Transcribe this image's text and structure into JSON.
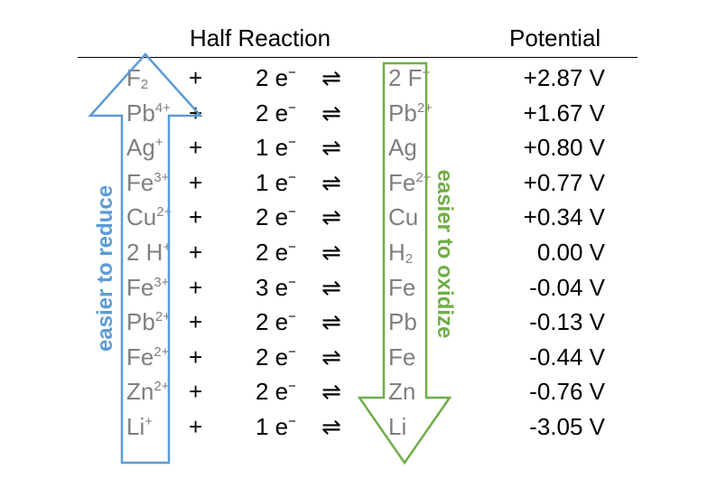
{
  "header": {
    "half_reaction": "Half Reaction",
    "potential": "Potential"
  },
  "labels": {
    "easier_to_reduce": "easier to reduce",
    "easier_to_oxidize": "easier to oxidize"
  },
  "colors": {
    "reduce_arrow": "#5b9bd5",
    "oxidize_arrow": "#70ad47",
    "species_text": "#7f7f7f"
  },
  "rows": [
    {
      "ox": "F",
      "ox_sub": "2",
      "ox_sup": "",
      "plus": "+",
      "electrons": "2 e",
      "e_sup": "−",
      "arrow": "⇌",
      "red": "2 F",
      "red_sub": "",
      "red_sup": "−",
      "potential": "+2.87 V"
    },
    {
      "ox": "Pb",
      "ox_sub": "",
      "ox_sup": "4+",
      "plus": "+",
      "electrons": "2 e",
      "e_sup": "−",
      "arrow": "⇌",
      "red": "Pb",
      "red_sub": "",
      "red_sup": "2+",
      "potential": "+1.67 V"
    },
    {
      "ox": "Ag",
      "ox_sub": "",
      "ox_sup": "+",
      "plus": "+",
      "electrons": "1 e",
      "e_sup": "−",
      "arrow": "⇌",
      "red": "Ag",
      "red_sub": "",
      "red_sup": "",
      "potential": "+0.80 V"
    },
    {
      "ox": "Fe",
      "ox_sub": "",
      "ox_sup": "3+",
      "plus": "+",
      "electrons": "1 e",
      "e_sup": "−",
      "arrow": "⇌",
      "red": "Fe",
      "red_sub": "",
      "red_sup": "2+",
      "potential": "+0.77 V"
    },
    {
      "ox": "Cu",
      "ox_sub": "",
      "ox_sup": "2+",
      "plus": "+",
      "electrons": "2 e",
      "e_sup": "−",
      "arrow": "⇌",
      "red": "Cu",
      "red_sub": "",
      "red_sup": "",
      "potential": "+0.34 V"
    },
    {
      "ox": "2 H",
      "ox_sub": "",
      "ox_sup": "+",
      "plus": "+",
      "electrons": "2 e",
      "e_sup": "−",
      "arrow": "⇌",
      "red": "H",
      "red_sub": "2",
      "red_sup": "",
      "potential": "0.00 V"
    },
    {
      "ox": "Fe",
      "ox_sub": "",
      "ox_sup": "3+",
      "plus": "+",
      "electrons": "3 e",
      "e_sup": "−",
      "arrow": "⇌",
      "red": "Fe",
      "red_sub": "",
      "red_sup": "",
      "potential": "-0.04 V"
    },
    {
      "ox": "Pb",
      "ox_sub": "",
      "ox_sup": "2+",
      "plus": "+",
      "electrons": "2 e",
      "e_sup": "−",
      "arrow": "⇌",
      "red": "Pb",
      "red_sub": "",
      "red_sup": "",
      "potential": "-0.13 V"
    },
    {
      "ox": "Fe",
      "ox_sub": "",
      "ox_sup": "2+",
      "plus": "+",
      "electrons": "2 e",
      "e_sup": "−",
      "arrow": "⇌",
      "red": "Fe",
      "red_sub": "",
      "red_sup": "",
      "potential": "-0.44 V"
    },
    {
      "ox": "Zn",
      "ox_sub": "",
      "ox_sup": "2+",
      "plus": "+",
      "electrons": "2 e",
      "e_sup": "−",
      "arrow": "⇌",
      "red": "Zn",
      "red_sub": "",
      "red_sup": "",
      "potential": "-0.76 V"
    },
    {
      "ox": "Li",
      "ox_sub": "",
      "ox_sup": "+",
      "plus": "+",
      "electrons": "1 e",
      "e_sup": "−",
      "arrow": "⇌",
      "red": "Li",
      "red_sub": "",
      "red_sup": "",
      "potential": "-3.05 V"
    }
  ]
}
